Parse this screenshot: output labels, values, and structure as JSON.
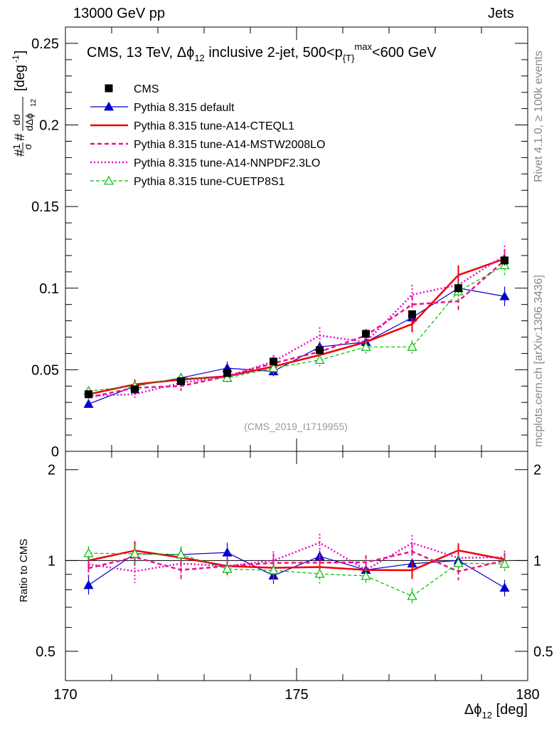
{
  "header": {
    "left": "13000 GeV pp",
    "right": "Jets"
  },
  "side_labels": {
    "rivet": "Rivet 4.1.0, ≥ 100k events",
    "mcplots": "mcplots.cern.ch [arXiv:1306.3436]"
  },
  "colors": {
    "cms": "#000000",
    "default": "#0000cc",
    "cteql1": "#ee0000",
    "mstw": "#ee1188",
    "nnpdf": "#ee00cc",
    "cuetp8s1": "#00bb00"
  },
  "chart_data": {
    "type": "line",
    "title_main": "CMS, 13 TeV, Δϕ",
    "title_sub12": "12",
    "title_rest": " inclusive 2-jet, 500<p",
    "title_subT": "{T}",
    "title_supmax": "max",
    "title_end": "<600 GeV",
    "analysis_id": "(CMS_2019_I1719955)",
    "xlabel": "Δϕ",
    "xlabel_sub": "12",
    "xlabel_unit": " [deg]",
    "ylabel_ratio": "Ratio to CMS",
    "xlim": [
      170,
      180
    ],
    "ylim_main": [
      0,
      0.26
    ],
    "ylim_ratio": [
      0.4,
      2.3
    ],
    "x_ticks": [
      "170",
      "175",
      "180"
    ],
    "y_ticks_main": [
      "0",
      "0.05",
      "0.1",
      "0.15",
      "0.2",
      "0.25"
    ],
    "y_ticks_ratio": [
      "0.5",
      "1",
      "2"
    ],
    "x": [
      170.5,
      171.5,
      172.5,
      173.5,
      174.5,
      175.5,
      176.5,
      177.5,
      178.5,
      179.5
    ],
    "cms": {
      "name": "CMS",
      "values": [
        0.035,
        0.038,
        0.043,
        0.048,
        0.055,
        0.062,
        0.072,
        0.084,
        0.1,
        0.117
      ],
      "errors": [
        0.002,
        0.002,
        0.002,
        0.002,
        0.002,
        0.002,
        0.002,
        0.002,
        0.003,
        0.003
      ]
    },
    "series": [
      {
        "name": "Pythia 8.315 default",
        "key": "default",
        "values": [
          0.029,
          0.04,
          0.045,
          0.051,
          0.049,
          0.064,
          0.067,
          0.082,
          0.1,
          0.095
        ],
        "errors": [
          0.002,
          0.002,
          0.002,
          0.004,
          0.003,
          0.003,
          0.003,
          0.003,
          0.003,
          0.006
        ]
      },
      {
        "name": "Pythia 8.315 tune-A14-CTEQL1",
        "key": "cteql1",
        "values": [
          0.035,
          0.041,
          0.044,
          0.046,
          0.052,
          0.059,
          0.067,
          0.078,
          0.108,
          0.118
        ],
        "errors": [
          0.002,
          0.003,
          0.003,
          0.003,
          0.004,
          0.004,
          0.004,
          0.005,
          0.006,
          0.006
        ]
      },
      {
        "name": "Pythia 8.315 tune-A14-MSTW2008LO",
        "key": "mstw",
        "values": [
          0.033,
          0.039,
          0.04,
          0.046,
          0.054,
          0.061,
          0.071,
          0.09,
          0.092,
          0.117
        ],
        "errors": [
          0.002,
          0.003,
          0.003,
          0.003,
          0.004,
          0.004,
          0.004,
          0.005,
          0.006,
          0.006
        ]
      },
      {
        "name": "Pythia 8.315 tune-A14-NNPDF2.3LO",
        "key": "nnpdf",
        "values": [
          0.034,
          0.035,
          0.042,
          0.046,
          0.055,
          0.071,
          0.067,
          0.096,
          0.102,
          0.12
        ],
        "errors": [
          0.002,
          0.003,
          0.003,
          0.003,
          0.004,
          0.005,
          0.004,
          0.006,
          0.006,
          0.006
        ]
      },
      {
        "name": "Pythia 8.315 tune-CUETP8S1",
        "key": "cuetp8s1",
        "values": [
          0.037,
          0.04,
          0.045,
          0.045,
          0.051,
          0.056,
          0.064,
          0.064,
          0.098,
          0.114
        ],
        "errors": [
          0.002,
          0.003,
          0.003,
          0.003,
          0.004,
          0.004,
          0.004,
          0.004,
          0.006,
          0.006
        ]
      }
    ]
  }
}
